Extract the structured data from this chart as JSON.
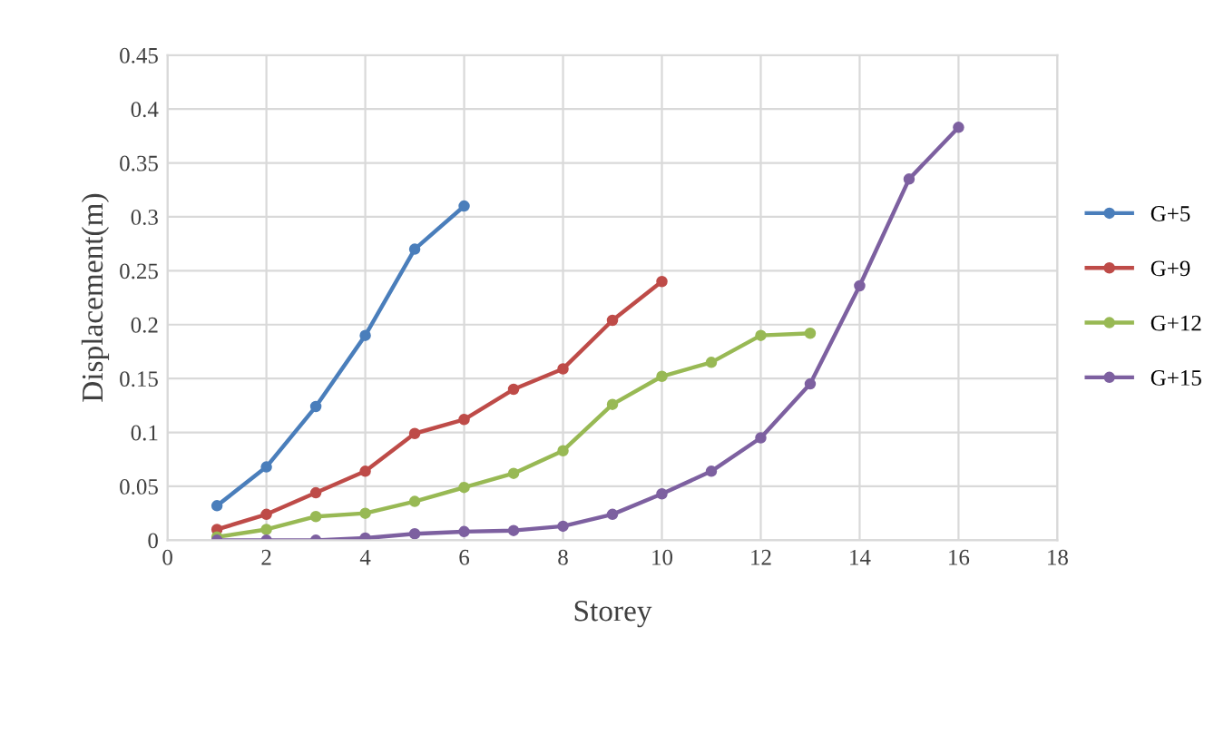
{
  "chart_data": {
    "type": "line",
    "xlabel": "Storey",
    "ylabel": "Displacement(m)",
    "xlim": [
      0,
      18
    ],
    "xticks": [
      0,
      2,
      4,
      6,
      8,
      10,
      12,
      14,
      16,
      18
    ],
    "ylim": [
      0,
      0.45
    ],
    "yticks": [
      0,
      0.05,
      0.1,
      0.15,
      0.2,
      0.25,
      0.3,
      0.35,
      0.4,
      0.45
    ],
    "grid": true,
    "legend": "right",
    "marker": "circle",
    "line_style": "solid",
    "series": [
      {
        "name": "G+5",
        "color": "#4a7ebb",
        "x": [
          1,
          2,
          3,
          4,
          5,
          6
        ],
        "values": [
          0.032,
          0.068,
          0.124,
          0.19,
          0.27,
          0.31
        ]
      },
      {
        "name": "G+9",
        "color": "#be4b48",
        "x": [
          1,
          2,
          3,
          4,
          5,
          6,
          7,
          8,
          9,
          10
        ],
        "values": [
          0.01,
          0.024,
          0.044,
          0.064,
          0.099,
          0.112,
          0.14,
          0.159,
          0.204,
          0.24
        ]
      },
      {
        "name": "G+12",
        "color": "#98b954",
        "x": [
          1,
          2,
          3,
          4,
          5,
          6,
          7,
          8,
          9,
          10,
          11,
          12,
          13
        ],
        "values": [
          0.003,
          0.01,
          0.022,
          0.025,
          0.036,
          0.049,
          0.062,
          0.083,
          0.126,
          0.152,
          0.165,
          0.19,
          0.192
        ]
      },
      {
        "name": "G+15",
        "color": "#7d60a0",
        "x": [
          1,
          2,
          3,
          4,
          5,
          6,
          7,
          8,
          9,
          10,
          11,
          12,
          13,
          14,
          15,
          16
        ],
        "values": [
          0,
          0,
          0,
          0.002,
          0.006,
          0.008,
          0.009,
          0.013,
          0.024,
          0.043,
          0.064,
          0.095,
          0.145,
          0.236,
          0.335,
          0.383
        ]
      }
    ]
  }
}
